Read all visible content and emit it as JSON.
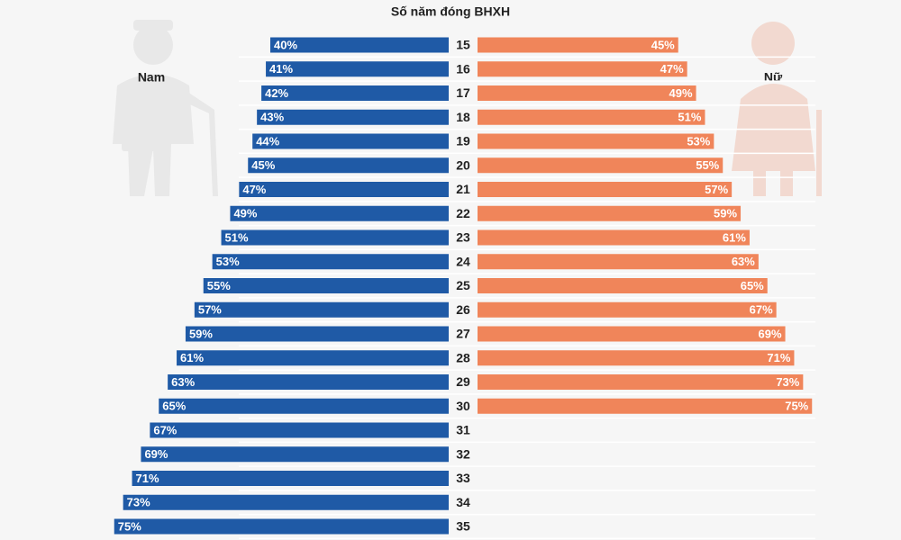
{
  "chart_data": {
    "type": "bar",
    "orientation": "butterfly",
    "title": "Số năm đóng BHXH",
    "categories": [
      "15",
      "16",
      "17",
      "18",
      "19",
      "20",
      "21",
      "22",
      "23",
      "24",
      "25",
      "26",
      "27",
      "28",
      "29",
      "30",
      "31",
      "32",
      "33",
      "34",
      "35"
    ],
    "series": [
      {
        "name": "Nam",
        "color": "#1f5aa6",
        "values": [
          40,
          41,
          42,
          43,
          44,
          45,
          47,
          49,
          51,
          53,
          55,
          57,
          59,
          61,
          63,
          65,
          67,
          69,
          71,
          73,
          75
        ],
        "value_labels": [
          "40%",
          "41%",
          "42%",
          "43%",
          "44%",
          "45%",
          "47%",
          "49%",
          "51%",
          "53%",
          "55%",
          "57%",
          "59%",
          "61%",
          "63%",
          "65%",
          "67%",
          "69%",
          "71%",
          "73%",
          "75%"
        ]
      },
      {
        "name": "Nữ",
        "color": "#f0855a",
        "values": [
          45,
          47,
          49,
          51,
          53,
          55,
          57,
          59,
          61,
          63,
          65,
          67,
          69,
          71,
          73,
          75,
          null,
          null,
          null,
          null,
          null
        ],
        "value_labels": [
          "45%",
          "47%",
          "49%",
          "51%",
          "53%",
          "55%",
          "57%",
          "59%",
          "61%",
          "63%",
          "65%",
          "67%",
          "69%",
          "71%",
          "73%",
          "75%",
          null,
          null,
          null,
          null,
          null
        ]
      }
    ]
  }
}
